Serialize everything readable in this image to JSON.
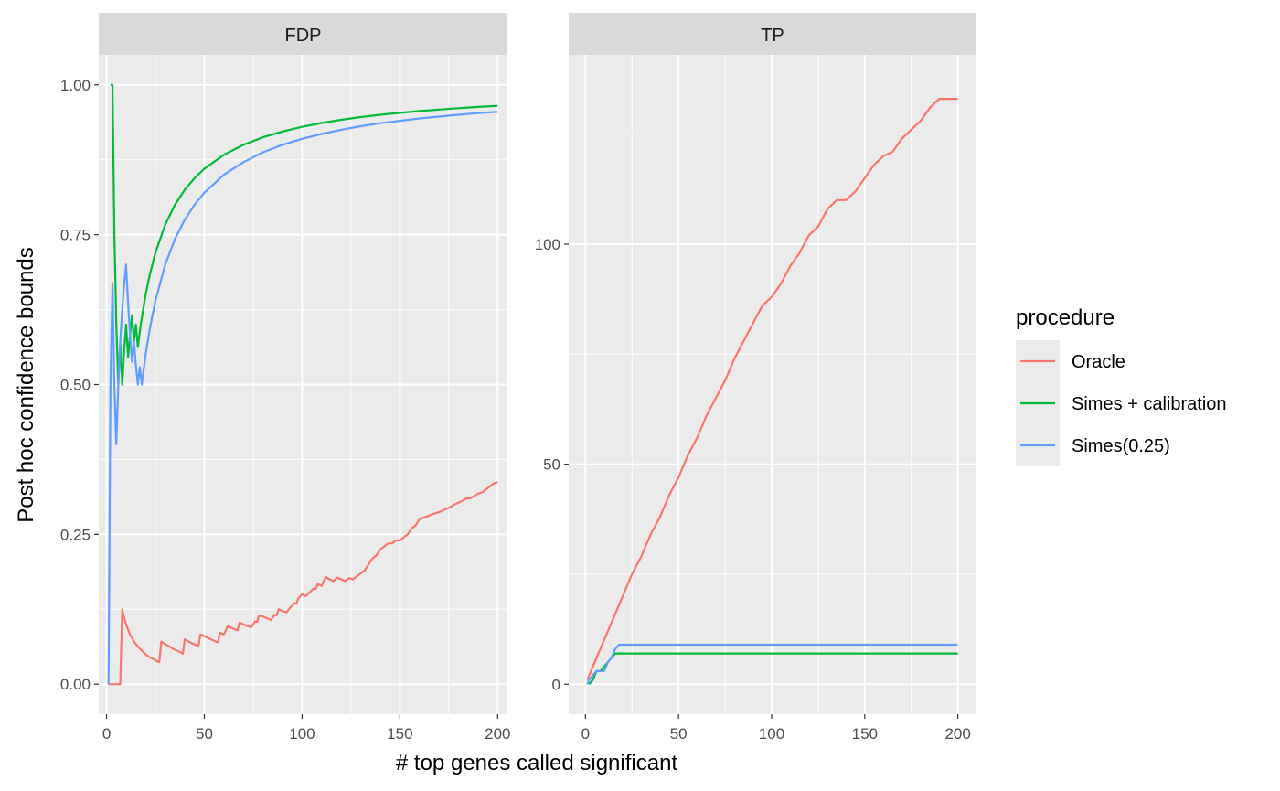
{
  "chart_data": [
    {
      "type": "line",
      "title": "FDP",
      "xlabel": "# top genes called significant",
      "ylabel": "Post hoc confidence bounds",
      "xlim": [
        -4,
        205
      ],
      "ylim": [
        -0.05,
        1.05
      ],
      "xticks": [
        0,
        50,
        100,
        150,
        200
      ],
      "yticks": [
        0,
        0.25,
        0.5,
        0.75,
        1
      ],
      "ytick_labels": [
        "0.00",
        "0.25",
        "0.50",
        "0.75",
        "1.00"
      ],
      "grid": true,
      "series": [
        {
          "name": "Oracle",
          "color": "#F8766D",
          "x": [
            1,
            2,
            3,
            4,
            5,
            6,
            7,
            8,
            9,
            10,
            12,
            14,
            16,
            18,
            20,
            22,
            24,
            26,
            27,
            28,
            30,
            32,
            34,
            36,
            38,
            39,
            40,
            42,
            44,
            46,
            47,
            48,
            50,
            52,
            54,
            56,
            57,
            58,
            60,
            62,
            64,
            66,
            67,
            68,
            70,
            72,
            74,
            76,
            77,
            78,
            80,
            82,
            84,
            86,
            87,
            88,
            90,
            92,
            94,
            96,
            97,
            98,
            100,
            102,
            104,
            106,
            107,
            108,
            110,
            112,
            114,
            116,
            118,
            120,
            122,
            124,
            126,
            128,
            130,
            132,
            134,
            136,
            138,
            140,
            142,
            144,
            146,
            148,
            150,
            152,
            154,
            156,
            158,
            160,
            162,
            164,
            166,
            168,
            170,
            172,
            174,
            176,
            178,
            180,
            182,
            184,
            186,
            188,
            190,
            192,
            194,
            196,
            198,
            200
          ],
          "y": [
            0,
            0,
            0,
            0,
            0,
            0,
            0,
            0.125,
            0.111,
            0.1,
            0.083,
            0.071,
            0.063,
            0.056,
            0.05,
            0.045,
            0.042,
            0.038,
            0.037,
            0.071,
            0.067,
            0.063,
            0.059,
            0.056,
            0.053,
            0.051,
            0.075,
            0.071,
            0.068,
            0.065,
            0.064,
            0.083,
            0.08,
            0.077,
            0.074,
            0.071,
            0.07,
            0.086,
            0.083,
            0.097,
            0.094,
            0.091,
            0.09,
            0.103,
            0.1,
            0.097,
            0.095,
            0.105,
            0.104,
            0.115,
            0.113,
            0.11,
            0.107,
            0.116,
            0.115,
            0.125,
            0.122,
            0.12,
            0.128,
            0.135,
            0.134,
            0.143,
            0.15,
            0.147,
            0.154,
            0.16,
            0.159,
            0.167,
            0.164,
            0.179,
            0.175,
            0.172,
            0.178,
            0.175,
            0.172,
            0.177,
            0.175,
            0.18,
            0.185,
            0.19,
            0.2,
            0.21,
            0.215,
            0.225,
            0.23,
            0.235,
            0.235,
            0.24,
            0.24,
            0.245,
            0.25,
            0.26,
            0.265,
            0.275,
            0.278,
            0.28,
            0.283,
            0.285,
            0.287,
            0.29,
            0.293,
            0.296,
            0.3,
            0.303,
            0.306,
            0.31,
            0.31,
            0.314,
            0.318,
            0.32,
            0.325,
            0.33,
            0.335,
            0.337
          ]
        },
        {
          "name": "Simes + calibration",
          "color": "#00BA38",
          "x": [
            2,
            3,
            4,
            5,
            6,
            7,
            8,
            9,
            10,
            11,
            12,
            13,
            14,
            15,
            16,
            17,
            18,
            20,
            22,
            25,
            30,
            35,
            40,
            45,
            50,
            60,
            70,
            80,
            90,
            100,
            110,
            120,
            130,
            140,
            150,
            160,
            170,
            180,
            190,
            200
          ],
          "y": [
            1.0,
            1.0,
            0.75,
            0.6,
            0.5,
            0.571,
            0.5,
            0.556,
            0.6,
            0.545,
            0.5833,
            0.6154,
            0.5714,
            0.6,
            0.5625,
            0.5882,
            0.6111,
            0.65,
            0.6818,
            0.72,
            0.7667,
            0.8,
            0.825,
            0.8444,
            0.86,
            0.8833,
            0.9,
            0.9125,
            0.9222,
            0.93,
            0.9364,
            0.9417,
            0.9462,
            0.95,
            0.9533,
            0.9563,
            0.9588,
            0.9611,
            0.9632,
            0.965
          ]
        },
        {
          "name": "Simes(0.25)",
          "color": "#619CFF",
          "x": [
            1,
            2,
            3,
            4,
            5,
            6,
            7,
            8,
            9,
            10,
            11,
            12,
            13,
            14,
            15,
            16,
            17,
            18,
            19,
            20,
            22,
            25,
            30,
            35,
            40,
            45,
            50,
            60,
            70,
            80,
            90,
            100,
            110,
            120,
            130,
            140,
            150,
            160,
            170,
            180,
            190,
            200
          ],
          "y": [
            0,
            0.5,
            0.667,
            0.5,
            0.4,
            0.5,
            0.571,
            0.625,
            0.667,
            0.7,
            0.636,
            0.583,
            0.538,
            0.571,
            0.533,
            0.5,
            0.529,
            0.5,
            0.526,
            0.55,
            0.591,
            0.64,
            0.7,
            0.743,
            0.775,
            0.8,
            0.82,
            0.85,
            0.871,
            0.8875,
            0.9,
            0.91,
            0.918,
            0.925,
            0.931,
            0.936,
            0.94,
            0.944,
            0.947,
            0.95,
            0.953,
            0.955
          ]
        }
      ]
    },
    {
      "type": "line",
      "title": "TP",
      "xlabel": "# top genes called significant",
      "ylabel": "Post hoc confidence bounds",
      "xlim": [
        -9,
        210
      ],
      "ylim": [
        -6.8,
        143
      ],
      "xticks": [
        0,
        50,
        100,
        150,
        200
      ],
      "yticks": [
        0,
        50,
        100
      ],
      "grid": true,
      "series": [
        {
          "name": "Oracle",
          "color": "#F8766D",
          "x": [
            1,
            5,
            10,
            15,
            20,
            25,
            30,
            35,
            40,
            45,
            50,
            55,
            60,
            65,
            70,
            75,
            80,
            85,
            90,
            95,
            100,
            105,
            110,
            115,
            120,
            125,
            130,
            135,
            140,
            145,
            150,
            155,
            160,
            165,
            170,
            175,
            180,
            185,
            190,
            195,
            198,
            200
          ],
          "y": [
            1,
            5,
            10,
            15,
            20,
            25,
            29,
            34,
            38,
            43,
            47,
            52,
            56,
            61,
            65,
            69,
            74,
            78,
            82,
            86,
            88,
            91,
            95,
            98,
            102,
            104,
            108,
            110,
            110,
            112,
            115,
            118,
            120,
            121,
            124,
            126,
            128,
            131,
            133,
            133,
            133,
            133
          ]
        },
        {
          "name": "Simes + calibration",
          "color": "#00BA38",
          "x": [
            2,
            4,
            6,
            8,
            10,
            12,
            14,
            16,
            18,
            20,
            50,
            100,
            150,
            200
          ],
          "y": [
            0,
            1,
            3,
            3,
            4,
            5,
            6,
            7,
            7,
            7,
            7,
            7,
            7,
            7
          ]
        },
        {
          "name": "Simes(0.25)",
          "color": "#619CFF",
          "x": [
            1,
            2,
            4,
            6,
            8,
            10,
            12,
            14,
            16,
            18,
            20,
            50,
            100,
            150,
            200
          ],
          "y": [
            0,
            1,
            2,
            3,
            3,
            3,
            5,
            6,
            8,
            9,
            9,
            9,
            9,
            9,
            9
          ]
        }
      ]
    }
  ],
  "axis_titles": {
    "x": "# top genes called significant",
    "y": "Post hoc confidence bounds"
  },
  "legend": {
    "title": "procedure",
    "items": [
      {
        "label": "Oracle",
        "color": "#F8766D"
      },
      {
        "label": "Simes + calibration",
        "color": "#00BA38"
      },
      {
        "label": "Simes(0.25)",
        "color": "#619CFF"
      }
    ]
  }
}
